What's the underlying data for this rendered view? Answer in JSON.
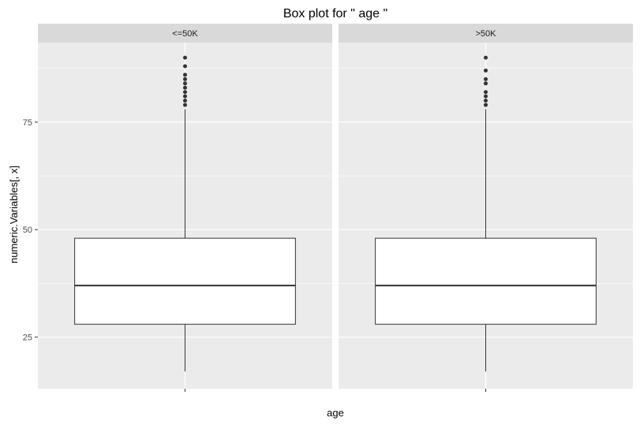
{
  "chart_data": {
    "type": "boxplot",
    "title": "Box plot for \" age \"",
    "xlabel": "age",
    "ylabel": "numeric.Variables[, x]",
    "ylim": [
      13,
      93.5
    ],
    "yticks": [
      25,
      50,
      75
    ],
    "grid": true,
    "panels": [
      {
        "label": "<=50K",
        "stats": {
          "whisker_low": 17,
          "q1": 28,
          "median": 37,
          "q3": 48,
          "whisker_high": 78
        },
        "outliers": [
          79,
          80,
          81,
          82,
          83,
          84,
          85,
          86,
          88,
          90
        ]
      },
      {
        "label": ">50K",
        "stats": {
          "whisker_low": 17,
          "q1": 28,
          "median": 37,
          "q3": 48,
          "whisker_high": 78
        },
        "outliers": [
          79,
          80,
          81,
          82,
          84,
          85,
          87,
          90
        ]
      }
    ],
    "colors": {
      "panel_background": "#ebebeb",
      "strip_background": "#d9d9d9",
      "grid_major": "#ffffff",
      "box_fill": "#ffffff",
      "box_line": "#333333",
      "outlier": "#333333",
      "tick": "#333333"
    }
  }
}
